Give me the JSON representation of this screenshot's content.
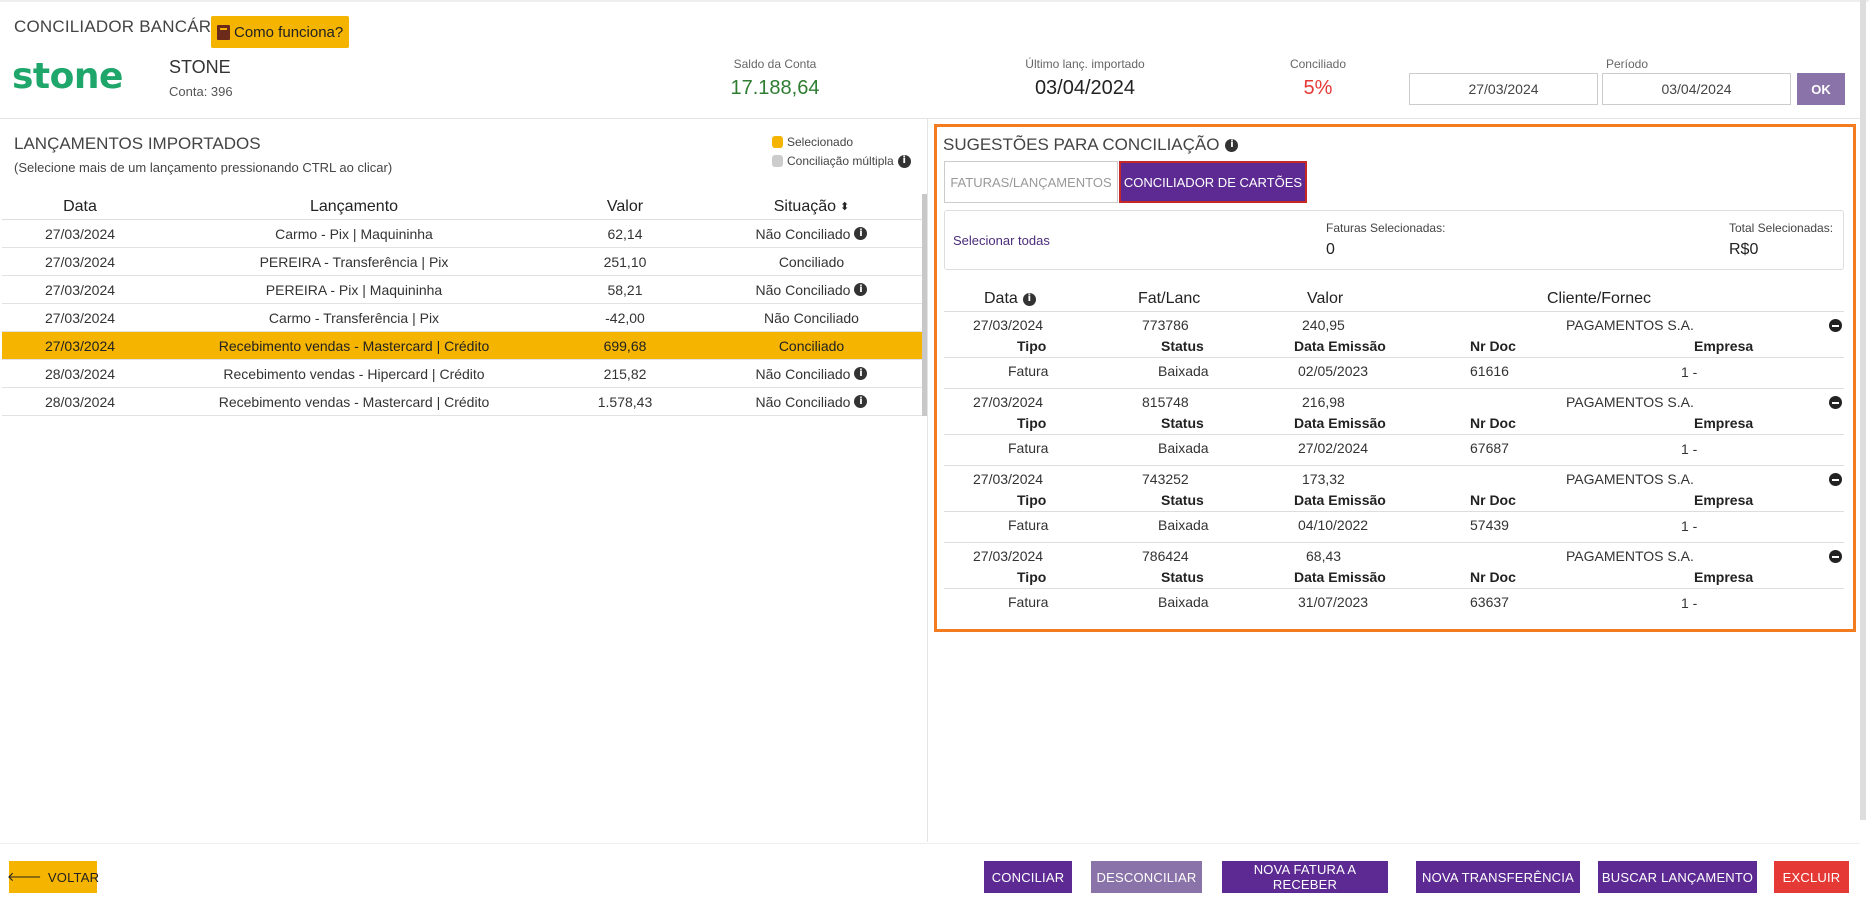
{
  "header": {
    "app_title": "CONCILIADOR BANCÁRIO",
    "how_button": "Como funciona?",
    "logo_text": "stone",
    "bank_name": "STONE",
    "account": "Conta: 396",
    "saldo_label": "Saldo da Conta",
    "saldo_value": "17.188,64",
    "ultimo_label": "Último lanç. importado",
    "ultimo_value": "03/04/2024",
    "conciliado_label": "Conciliado",
    "conciliado_value": "5%",
    "periodo_label": "Período",
    "period_from": "27/03/2024",
    "period_to": "03/04/2024",
    "ok_label": "OK"
  },
  "left": {
    "title": "LANÇAMENTOS IMPORTADOS",
    "subtitle": "(Selecione mais de um lançamento pressionando CTRL ao clicar)",
    "legend_selected": "Selecionado",
    "legend_multiple": "Conciliação múltipla",
    "columns": [
      "Data",
      "Lançamento",
      "Valor",
      "Situação"
    ],
    "rows": [
      {
        "data": "27/03/2024",
        "lanc": "Carmo - Pix | Maquininha",
        "valor": "62,14",
        "sit": "Não Conciliado"
      },
      {
        "data": "27/03/2024",
        "lanc": "PEREIRA - Transferência | Pix",
        "valor": "251,10",
        "sit": "Conciliado"
      },
      {
        "data": "27/03/2024",
        "lanc": "PEREIRA - Pix | Maquininha",
        "valor": "58,21",
        "sit": "Não Conciliado"
      },
      {
        "data": "27/03/2024",
        "lanc": "Carmo - Transferência | Pix",
        "valor": "-42,00",
        "sit": "Não Conciliado"
      },
      {
        "data": "27/03/2024",
        "lanc": "Recebimento vendas - Mastercard | Crédito",
        "valor": "699,68",
        "sit": "Conciliado"
      },
      {
        "data": "28/03/2024",
        "lanc": "Recebimento vendas - Hipercard | Crédito",
        "valor": "215,82",
        "sit": "Não Conciliado"
      },
      {
        "data": "28/03/2024",
        "lanc": "Recebimento vendas - Mastercard | Crédito",
        "valor": "1.578,43",
        "sit": "Não Conciliado"
      }
    ]
  },
  "right": {
    "title": "SUGESTÕES PARA CONCILIAÇÃO",
    "tab_faturas": "FATURAS/LANÇAMENTOS",
    "tab_cartoes": "CONCILIADOR DE CARTÕES",
    "select_all": "Selecionar todas",
    "faturas_sel_label": "Faturas Selecionadas:",
    "faturas_sel_value": "0",
    "total_sel_label": "Total Selecionadas:",
    "total_sel_value": "R$0",
    "columns": {
      "data": "Data",
      "fat": "Fat/Lanc",
      "valor": "Valor",
      "cliente": "Cliente/Fornec"
    },
    "sub_columns": {
      "tipo": "Tipo",
      "status": "Status",
      "emissao": "Data Emissão",
      "nrdoc": "Nr Doc",
      "empresa": "Empresa"
    },
    "suggestions": [
      {
        "data": "27/03/2024",
        "fat": "773786",
        "valor": "240,95",
        "cliente": "PAGAMENTOS S.A.",
        "tipo": "Fatura",
        "status": "Baixada",
        "emissao": "02/05/2023",
        "nrdoc": "61616",
        "empresa": "1 -"
      },
      {
        "data": "27/03/2024",
        "fat": "815748",
        "valor": "216,98",
        "cliente": "PAGAMENTOS S.A.",
        "tipo": "Fatura",
        "status": "Baixada",
        "emissao": "27/02/2024",
        "nrdoc": "67687",
        "empresa": "1 -"
      },
      {
        "data": "27/03/2024",
        "fat": "743252",
        "valor": "173,32",
        "cliente": "PAGAMENTOS S.A.",
        "tipo": "Fatura",
        "status": "Baixada",
        "emissao": "04/10/2022",
        "nrdoc": "57439",
        "empresa": "1 -"
      },
      {
        "data": "27/03/2024",
        "fat": "786424",
        "valor": "68,43",
        "cliente": "PAGAMENTOS S.A.",
        "tipo": "Fatura",
        "status": "Baixada",
        "emissao": "31/07/2023",
        "nrdoc": "63637",
        "empresa": "1 -"
      }
    ]
  },
  "footer": {
    "voltar": "VOLTAR",
    "conciliar": "CONCILIAR",
    "desconciliar": "DESCONCILIAR",
    "nova_fatura": "NOVA FATURA A RECEBER",
    "nova_transferencia": "NOVA TRANSFERÊNCIA",
    "buscar": "BUSCAR LANÇAMENTO",
    "excluir": "EXCLUIR"
  },
  "colors": {
    "accent_yellow": "#f5b400",
    "purple": "#5c2a92",
    "purple_light": "#8a73a8",
    "danger": "#e53935",
    "highlight_orange": "#f47c20",
    "brand_green": "#1fa66a"
  },
  "icons": [
    "book-icon",
    "info-icon",
    "sort-icon",
    "minus-circle-icon",
    "arrow-left-icon"
  ]
}
